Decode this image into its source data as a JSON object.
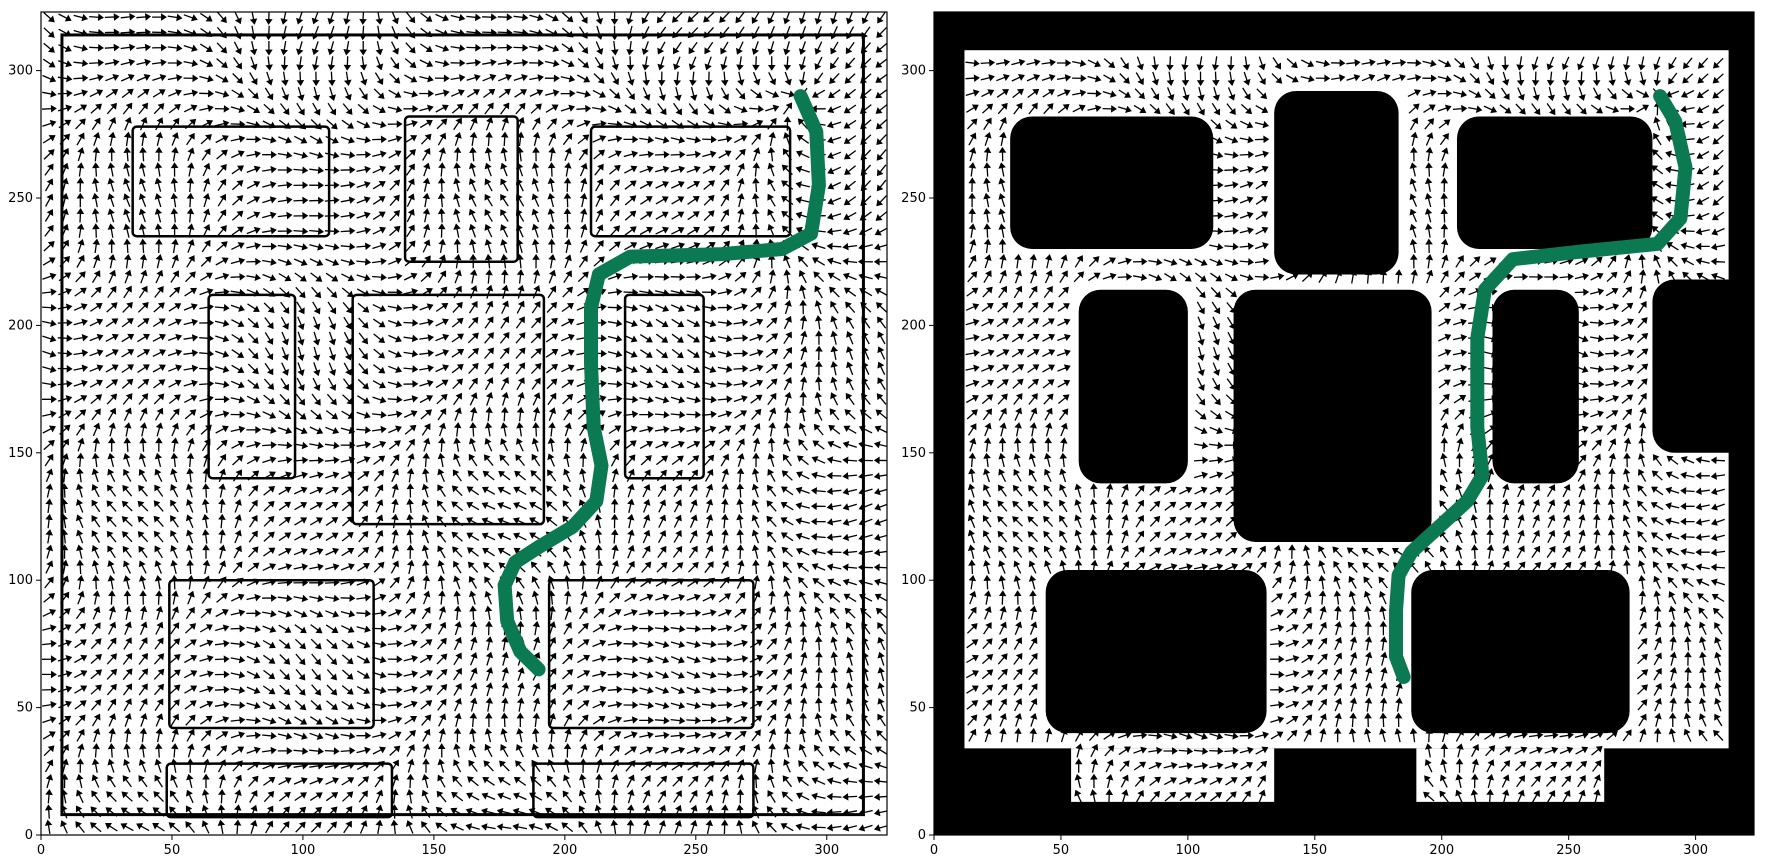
{
  "chart_data": [
    {
      "type": "quiver",
      "title": "",
      "xlabel": "",
      "ylabel": "",
      "xlim": [
        0,
        323
      ],
      "ylim": [
        0,
        323
      ],
      "xticks": [
        "0",
        "50",
        "100",
        "150",
        "200",
        "250",
        "300"
      ],
      "yticks": [
        "0",
        "50",
        "100",
        "150",
        "200",
        "250",
        "300"
      ],
      "background": "#ffffff",
      "obstacle_style": "outline",
      "obstacles": [
        [
          35,
          235,
          110,
          278
        ],
        [
          139,
          225,
          182,
          282
        ],
        [
          210,
          235,
          286,
          278
        ],
        [
          64,
          140,
          97,
          212
        ],
        [
          119,
          122,
          192,
          212
        ],
        [
          223,
          140,
          253,
          212
        ],
        [
          49,
          42,
          127,
          100
        ],
        [
          194,
          42,
          272,
          100
        ],
        [
          48,
          7,
          134,
          28
        ],
        [
          188,
          7,
          272,
          28
        ]
      ],
      "path_color": "#0b7a52",
      "path": [
        [
          190,
          65
        ],
        [
          183,
          72
        ],
        [
          178,
          84
        ],
        [
          177,
          98
        ],
        [
          181,
          107
        ],
        [
          190,
          113
        ],
        [
          203,
          121
        ],
        [
          212,
          131
        ],
        [
          214,
          145
        ],
        [
          211,
          160
        ],
        [
          210,
          185
        ],
        [
          210,
          207
        ],
        [
          213,
          220
        ],
        [
          225,
          227
        ],
        [
          260,
          228
        ],
        [
          283,
          230
        ],
        [
          294,
          236
        ],
        [
          297,
          255
        ],
        [
          296,
          276
        ],
        [
          290,
          290
        ]
      ]
    },
    {
      "type": "quiver",
      "title": "",
      "xlabel": "",
      "ylabel": "",
      "xlim": [
        0,
        323
      ],
      "ylim": [
        0,
        323
      ],
      "xticks": [
        "0",
        "50",
        "100",
        "150",
        "200",
        "250",
        "300"
      ],
      "yticks": [
        "0",
        "50",
        "100",
        "150",
        "200",
        "250",
        "300"
      ],
      "background": "#000000",
      "free_region": [
        [
          12,
          34,
          313,
          308
        ],
        [
          54,
          13,
          134,
          34
        ],
        [
          190,
          13,
          264,
          34
        ]
      ],
      "obstacle_style": "filled",
      "obstacles": [
        [
          30,
          230,
          110,
          282
        ],
        [
          134,
          220,
          183,
          292
        ],
        [
          206,
          230,
          283,
          282
        ],
        [
          57,
          138,
          100,
          214
        ],
        [
          118,
          115,
          196,
          214
        ],
        [
          220,
          138,
          254,
          214
        ],
        [
          44,
          40,
          131,
          104
        ],
        [
          188,
          40,
          274,
          104
        ],
        [
          0,
          150,
          12,
          218
        ],
        [
          283,
          150,
          323,
          218
        ]
      ],
      "path_color": "#0b7a52",
      "path": [
        [
          185,
          62
        ],
        [
          182,
          70
        ],
        [
          182,
          88
        ],
        [
          183,
          102
        ],
        [
          188,
          111
        ],
        [
          199,
          121
        ],
        [
          210,
          131
        ],
        [
          216,
          141
        ],
        [
          214,
          160
        ],
        [
          214,
          195
        ],
        [
          217,
          214
        ],
        [
          228,
          226
        ],
        [
          255,
          229
        ],
        [
          285,
          232
        ],
        [
          294,
          242
        ],
        [
          296,
          262
        ],
        [
          292,
          280
        ],
        [
          286,
          290
        ]
      ]
    }
  ]
}
